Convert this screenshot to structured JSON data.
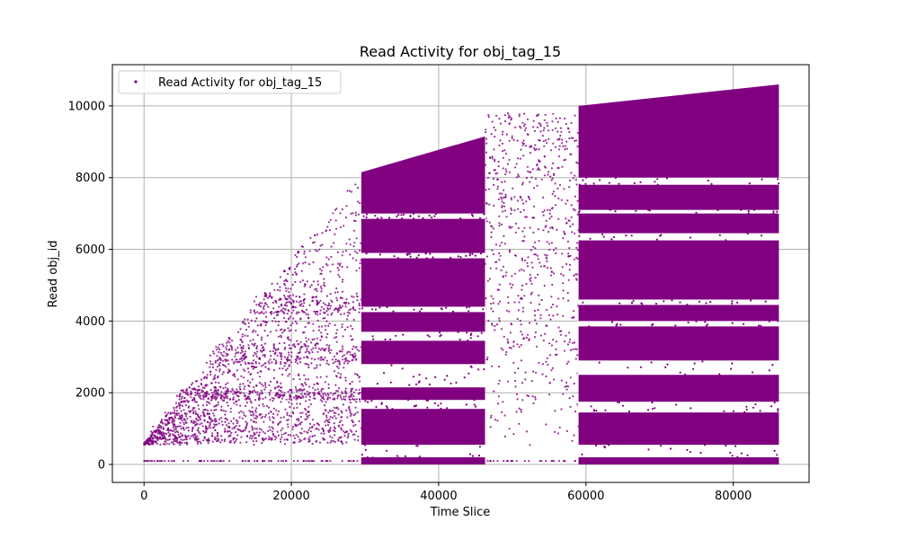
{
  "chart_data": {
    "type": "scatter",
    "title": "Read Activity for obj_tag_15",
    "xlabel": "Time Slice",
    "ylabel": "Read obj_id",
    "xlim": [
      -4300,
      90300
    ],
    "ylim": [
      -500,
      11150
    ],
    "xticks": [
      0,
      20000,
      40000,
      60000,
      80000
    ],
    "yticks": [
      0,
      2000,
      4000,
      6000,
      8000,
      10000
    ],
    "grid": true,
    "legend": "upper-left",
    "series": [
      {
        "name": "Read Activity for obj_tag_15",
        "color": "#800080",
        "marker_size": 1.5,
        "description_regions": [
          {
            "x_range": [
              0,
              29500
            ],
            "y_upper_from": 600,
            "y_upper_to": 8150,
            "pattern": "sparse-scattered",
            "dense_bands": [
              [
                600,
                1500
              ],
              [
                1800,
                2100
              ],
              [
                2800,
                3400
              ],
              [
                4200,
                4700
              ]
            ]
          },
          {
            "x_range": [
              29500,
              46300
            ],
            "y_range": [
              0,
              9150
            ],
            "pattern": "dense",
            "upper_edge": [
              [
                29500,
                8150
              ],
              [
                46300,
                9150
              ]
            ]
          },
          {
            "x_range": [
              46300,
              59000
            ],
            "y_range": [
              0,
              9800
            ],
            "pattern": "sparse-scattered"
          },
          {
            "x_range": [
              59000,
              86200
            ],
            "y_range": [
              0,
              10600
            ],
            "pattern": "dense",
            "upper_edge": [
              [
                59000,
                10000
              ],
              [
                86200,
                10600
              ]
            ]
          }
        ],
        "horizontal_gaps_dense_1": [
          [
            150,
            550
          ],
          [
            1550,
            1800
          ],
          [
            2150,
            2800
          ],
          [
            3450,
            3700
          ],
          [
            4250,
            4400
          ],
          [
            5750,
            5900
          ],
          [
            6850,
            7000
          ]
        ],
        "horizontal_gaps_dense_2": [
          [
            150,
            550
          ],
          [
            1450,
            1750
          ],
          [
            2500,
            2900
          ],
          [
            3850,
            4000
          ],
          [
            4450,
            4600
          ],
          [
            6250,
            6450
          ],
          [
            7000,
            7100
          ],
          [
            7800,
            8000
          ]
        ],
        "baseline_y": 100
      }
    ]
  }
}
